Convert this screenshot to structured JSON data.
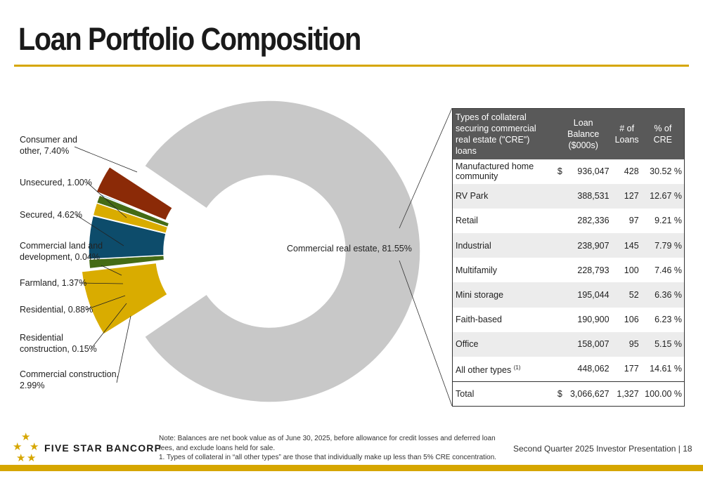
{
  "title": "Loan Portfolio Composition",
  "colors": {
    "accent": "#d6a600",
    "cre": "#c8c8c8",
    "consumer": "#d9ac00",
    "unsecured": "#446b15",
    "secured": "#0d4c6b",
    "commercial_land": "#1b7aa3",
    "farmland": "#d9ac00",
    "residential": "#446b15",
    "residential_construction": "#1b7aa3",
    "commercial_construction": "#8b2a07"
  },
  "chart_data": {
    "type": "pie",
    "variant": "donut",
    "slices": [
      {
        "label": "Commercial real estate",
        "value": 81.55,
        "display": "Commercial real estate, 81.55%"
      },
      {
        "label": "Consumer and other",
        "value": 7.4,
        "display": "Consumer and other, 7.40%"
      },
      {
        "label": "Unsecured",
        "value": 1.0,
        "display": "Unsecured, 1.00%"
      },
      {
        "label": "Secured",
        "value": 4.62,
        "display": "Secured, 4.62%"
      },
      {
        "label": "Commercial land and development",
        "value": 0.04,
        "display": "Commercial land and development, 0.04%"
      },
      {
        "label": "Farmland",
        "value": 1.37,
        "display": "Farmland, 1.37%"
      },
      {
        "label": "Residential",
        "value": 0.88,
        "display": "Residential, 0.88%"
      },
      {
        "label": "Residential construction",
        "value": 0.15,
        "display": "Residential construction, 0.15%"
      },
      {
        "label": "Commercial construction",
        "value": 2.99,
        "display": "Commercial construction, 2.99%"
      }
    ]
  },
  "labels": {
    "cre": "Commercial real estate, 81.55%",
    "consumer": [
      "Consumer and",
      "other, 7.40%"
    ],
    "unsecured": [
      "Unsecured, 1.00%"
    ],
    "secured": [
      "Secured, 4.62%"
    ],
    "commercial_land": [
      "Commercial land and",
      "development, 0.04%"
    ],
    "farmland": [
      "Farmland, 1.37%"
    ],
    "residential": [
      "Residential, 0.88%"
    ],
    "residential_construction": [
      "Residential",
      "construction, 0.15%"
    ],
    "commercial_construction": [
      "Commercial construction,",
      "2.99%"
    ]
  },
  "table": {
    "headers": [
      "Types of collateral securing commercial real estate (\"CRE\") loans",
      "Loan Balance ($000s)",
      "# of Loans",
      "% of CRE"
    ],
    "rows": [
      {
        "type": "Manufactured home community",
        "dollar": "$",
        "balance": "936,047",
        "loans": "428",
        "pct": "30.52 %"
      },
      {
        "type": "RV Park",
        "dollar": "",
        "balance": "388,531",
        "loans": "127",
        "pct": "12.67 %"
      },
      {
        "type": "Retail",
        "dollar": "",
        "balance": "282,336",
        "loans": "97",
        "pct": "9.21 %"
      },
      {
        "type": "Industrial",
        "dollar": "",
        "balance": "238,907",
        "loans": "145",
        "pct": "7.79 %"
      },
      {
        "type": "Multifamily",
        "dollar": "",
        "balance": "228,793",
        "loans": "100",
        "pct": "7.46 %"
      },
      {
        "type": "Mini storage",
        "dollar": "",
        "balance": "195,044",
        "loans": "52",
        "pct": "6.36 %"
      },
      {
        "type": "Faith-based",
        "dollar": "",
        "balance": "190,900",
        "loans": "106",
        "pct": "6.23 %"
      },
      {
        "type": "Office",
        "dollar": "",
        "balance": "158,007",
        "loans": "95",
        "pct": "5.15 %"
      },
      {
        "type": "All other types",
        "sup": "(1)",
        "dollar": "",
        "balance": "448,062",
        "loans": "177",
        "pct": "14.61 %"
      }
    ],
    "total": {
      "type": "Total",
      "dollar": "$",
      "balance": "3,066,627",
      "loans": "1,327",
      "pct": "100.00 %"
    }
  },
  "logo": {
    "text": "FIVE STAR BANCORP",
    "star_glyph": "★"
  },
  "note": {
    "line1": "Note: Balances are net book value as of June 30, 2025, before allowance for credit losses and deferred loan fees, and exclude loans held for sale.",
    "line2": "1.    Types of collateral in “all other types” are those that individually make up less than 5% CRE concentration."
  },
  "footer": {
    "presentation": "Second Quarter 2025 Investor Presentation |  18"
  }
}
